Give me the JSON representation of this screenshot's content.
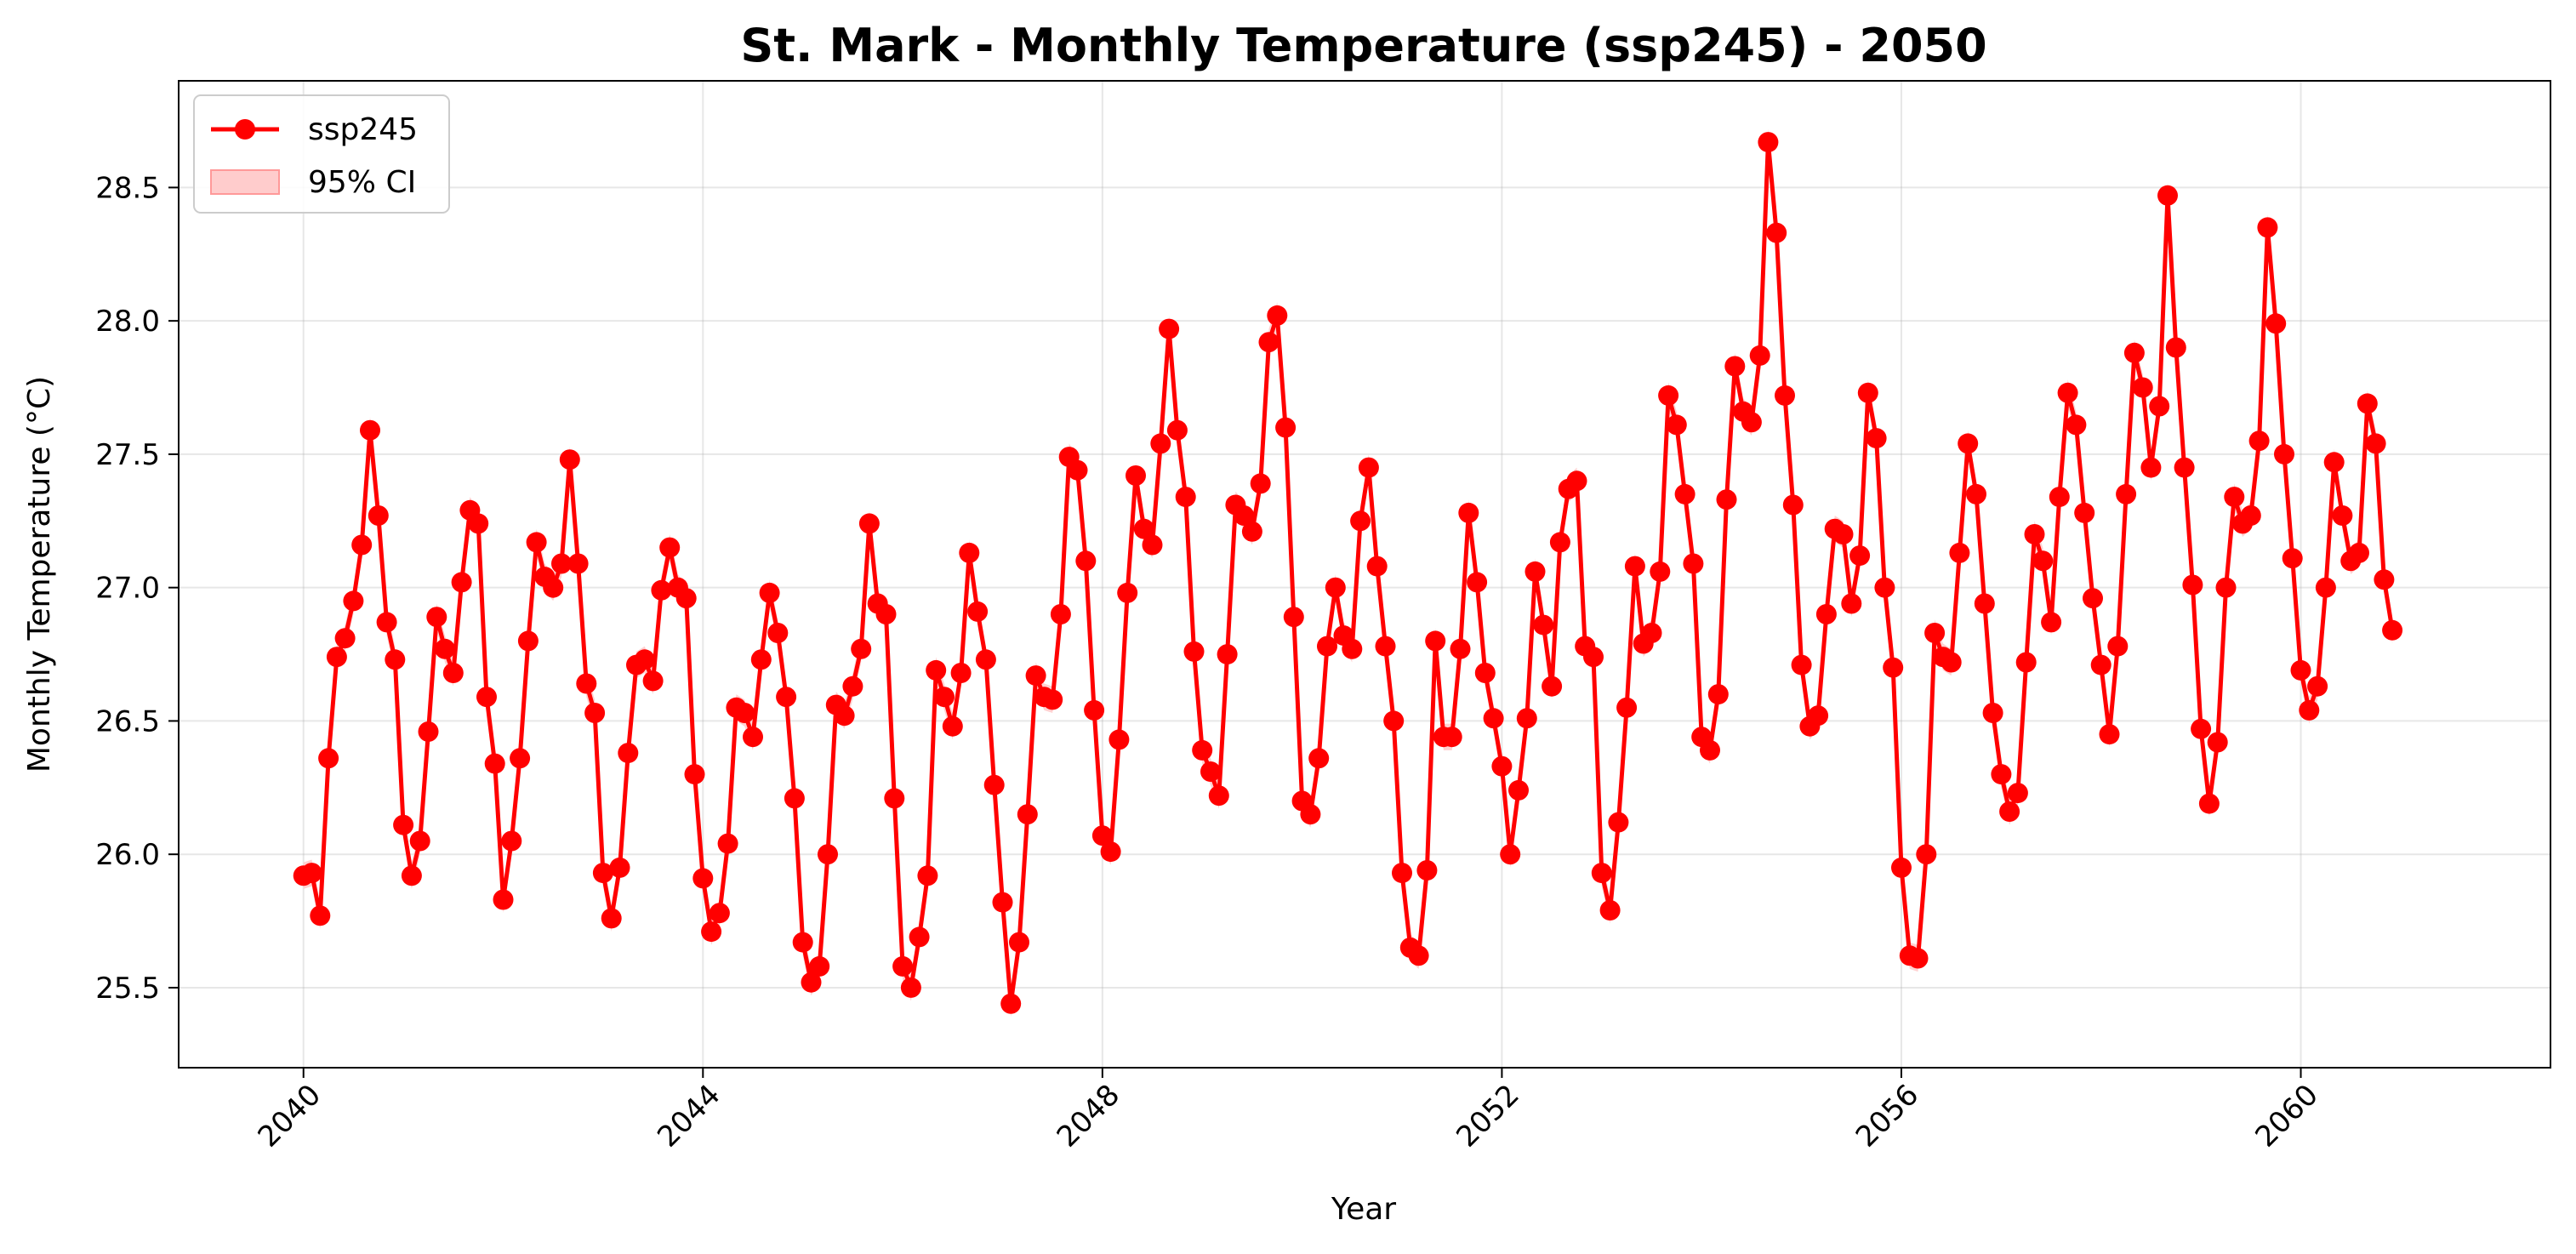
{
  "chart_data": {
    "type": "line",
    "title": "St. Mark - Monthly Temperature (ssp245) - 2050",
    "xlabel": "Year",
    "ylabel": "Monthly Temperature (°C)",
    "xlim": [
      2038.75,
      2062.5
    ],
    "ylim": [
      25.2,
      28.9
    ],
    "x_ticks": [
      "2040",
      "2044",
      "2048",
      "2052",
      "2056",
      "2060"
    ],
    "y_ticks": [
      "25.5",
      "26.0",
      "26.5",
      "27.0",
      "27.5",
      "28.0",
      "28.5"
    ],
    "grid": true,
    "legend_position": "top-left",
    "x_start": "2040-01",
    "x_step": "monthly",
    "series": [
      {
        "name": "ssp245",
        "color": "#ff0000",
        "marker": "circle",
        "values": [
          25.92,
          25.93,
          25.77,
          26.36,
          26.74,
          26.81,
          26.95,
          27.16,
          27.59,
          27.27,
          26.87,
          26.73,
          26.11,
          25.92,
          26.05,
          26.46,
          26.89,
          26.77,
          26.68,
          27.02,
          27.29,
          27.24,
          26.59,
          26.34,
          25.83,
          26.05,
          26.36,
          26.8,
          27.17,
          27.04,
          27.0,
          27.09,
          27.48,
          27.09,
          26.64,
          26.53,
          25.93,
          25.76,
          25.95,
          26.38,
          26.71,
          26.73,
          26.65,
          26.99,
          27.15,
          27.0,
          26.96,
          26.3,
          25.91,
          25.71,
          25.78,
          26.04,
          26.55,
          26.53,
          26.44,
          26.73,
          26.98,
          26.83,
          26.59,
          26.21,
          25.67,
          25.52,
          25.58,
          26.0,
          26.56,
          26.52,
          26.63,
          26.77,
          27.24,
          26.94,
          26.9,
          26.21,
          25.58,
          25.5,
          25.69,
          25.92,
          26.69,
          26.59,
          26.48,
          26.68,
          27.13,
          26.91,
          26.73,
          26.26,
          25.82,
          25.44,
          25.67,
          26.15,
          26.67,
          26.59,
          26.58,
          26.9,
          27.49,
          27.44,
          27.1,
          26.54,
          26.07,
          26.01,
          26.43,
          26.98,
          27.42,
          27.22,
          27.16,
          27.54,
          27.97,
          27.59,
          27.34,
          26.76,
          26.39,
          26.31,
          26.22,
          26.75,
          27.31,
          27.27,
          27.21,
          27.39,
          27.92,
          28.02,
          27.6,
          26.89,
          26.2,
          26.15,
          26.36,
          26.78,
          27.0,
          26.82,
          26.77,
          27.25,
          27.45,
          27.08,
          26.78,
          26.5,
          25.93,
          25.65,
          25.62,
          25.94,
          26.8,
          26.44,
          26.44,
          26.77,
          27.28,
          27.02,
          26.68,
          26.51,
          26.33,
          26.0,
          26.24,
          26.51,
          27.06,
          26.86,
          26.63,
          27.17,
          27.37,
          27.4,
          26.78,
          26.74,
          25.93,
          25.79,
          26.12,
          26.55,
          27.08,
          26.79,
          26.83,
          27.06,
          27.72,
          27.61,
          27.35,
          27.09,
          26.44,
          26.39,
          26.6,
          27.33,
          27.83,
          27.66,
          27.62,
          27.87,
          28.67,
          28.33,
          27.72,
          27.31,
          26.71,
          26.48,
          26.52,
          26.9,
          27.22,
          27.2,
          26.94,
          27.12,
          27.73,
          27.56,
          27.0,
          26.7,
          25.95,
          25.62,
          25.61,
          26.0,
          26.83,
          26.74,
          26.72,
          27.13,
          27.54,
          27.35,
          26.94,
          26.53,
          26.3,
          26.16,
          26.23,
          26.72,
          27.2,
          27.1,
          26.87,
          27.34,
          27.73,
          27.61,
          27.28,
          26.96,
          26.71,
          26.45,
          26.78,
          27.35,
          27.88,
          27.75,
          27.45,
          27.68,
          28.47,
          27.9,
          27.45,
          27.01,
          26.47,
          26.19,
          26.42,
          27.0,
          27.34,
          27.24,
          27.27,
          27.55,
          28.35,
          27.99,
          27.5,
          27.11,
          26.69,
          26.54,
          26.63,
          27.0,
          27.47,
          27.27,
          27.1,
          27.13,
          27.69,
          27.54,
          27.03,
          26.84
        ]
      }
    ],
    "ci": {
      "name": "95% CI",
      "color": "#ffcccc",
      "half_width": 0.05
    }
  }
}
